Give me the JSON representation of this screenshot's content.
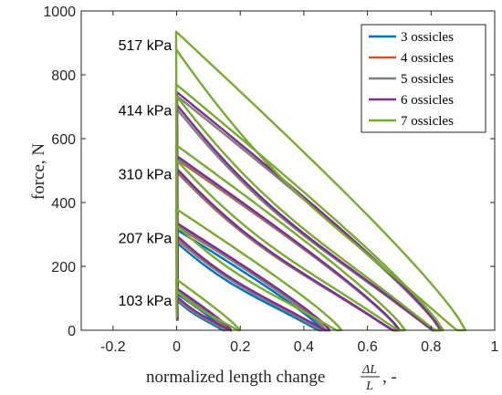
{
  "chart_data": {
    "type": "line",
    "xlabel": "normalized length change",
    "xlabel_math": {
      "num": "ΔL",
      "den": "L",
      "suffix": ", -"
    },
    "ylabel": "force, N",
    "xlim": [
      -0.3,
      1.0
    ],
    "ylim": [
      0,
      1000
    ],
    "xticks": [
      "-0.2",
      "0",
      "0.2",
      "0.4",
      "0.6",
      "0.8",
      "1"
    ],
    "yticks": [
      "0",
      "200",
      "400",
      "600",
      "800",
      "1000"
    ],
    "grid": false,
    "legend_position": "top-right",
    "pressure_labels": [
      {
        "text": "517 kPa",
        "y": 895
      },
      {
        "text": "414 kPa",
        "y": 690
      },
      {
        "text": "310 kPa",
        "y": 490
      },
      {
        "text": "207 kPa",
        "y": 290
      },
      {
        "text": "103 kPa",
        "y": 95
      }
    ],
    "series": [
      {
        "name": "3 ossicles",
        "color": "#0072BD",
        "loops": [
          {
            "top": 115,
            "mid": 95,
            "x_end": 0.15
          },
          {
            "top": 315,
            "mid": 275,
            "x_end": 0.46
          }
        ]
      },
      {
        "name": "4 ossicles",
        "color": "#D95319",
        "loops": [
          {
            "top": 120,
            "mid": 100,
            "x_end": 0.17
          },
          {
            "top": 325,
            "mid": 285,
            "x_end": 0.48
          },
          {
            "top": 535,
            "mid": 495,
            "x_end": 0.7
          }
        ]
      },
      {
        "name": "5 ossicles",
        "color": "#7F7F7F",
        "loops": [
          {
            "top": 125,
            "mid": 100,
            "x_end": 0.16
          },
          {
            "top": 330,
            "mid": 290,
            "x_end": 0.47
          },
          {
            "top": 540,
            "mid": 500,
            "x_end": 0.7
          },
          {
            "top": 735,
            "mid": 695,
            "x_end": 0.83
          }
        ]
      },
      {
        "name": "6 ossicles",
        "color": "#7E2F8E",
        "loops": [
          {
            "top": 130,
            "mid": 105,
            "x_end": 0.17
          },
          {
            "top": 335,
            "mid": 295,
            "x_end": 0.48
          },
          {
            "top": 545,
            "mid": 505,
            "x_end": 0.7
          },
          {
            "top": 745,
            "mid": 705,
            "x_end": 0.83
          }
        ]
      },
      {
        "name": "7 ossicles",
        "color": "#77AC30",
        "loops": [
          {
            "top": 160,
            "mid": 125,
            "x_end": 0.2
          },
          {
            "top": 380,
            "mid": 330,
            "x_end": 0.52
          },
          {
            "top": 580,
            "mid": 535,
            "x_end": 0.72
          },
          {
            "top": 770,
            "mid": 735,
            "x_end": 0.84
          },
          {
            "top": 935,
            "mid": 880,
            "x_end": 0.91
          }
        ]
      }
    ]
  }
}
